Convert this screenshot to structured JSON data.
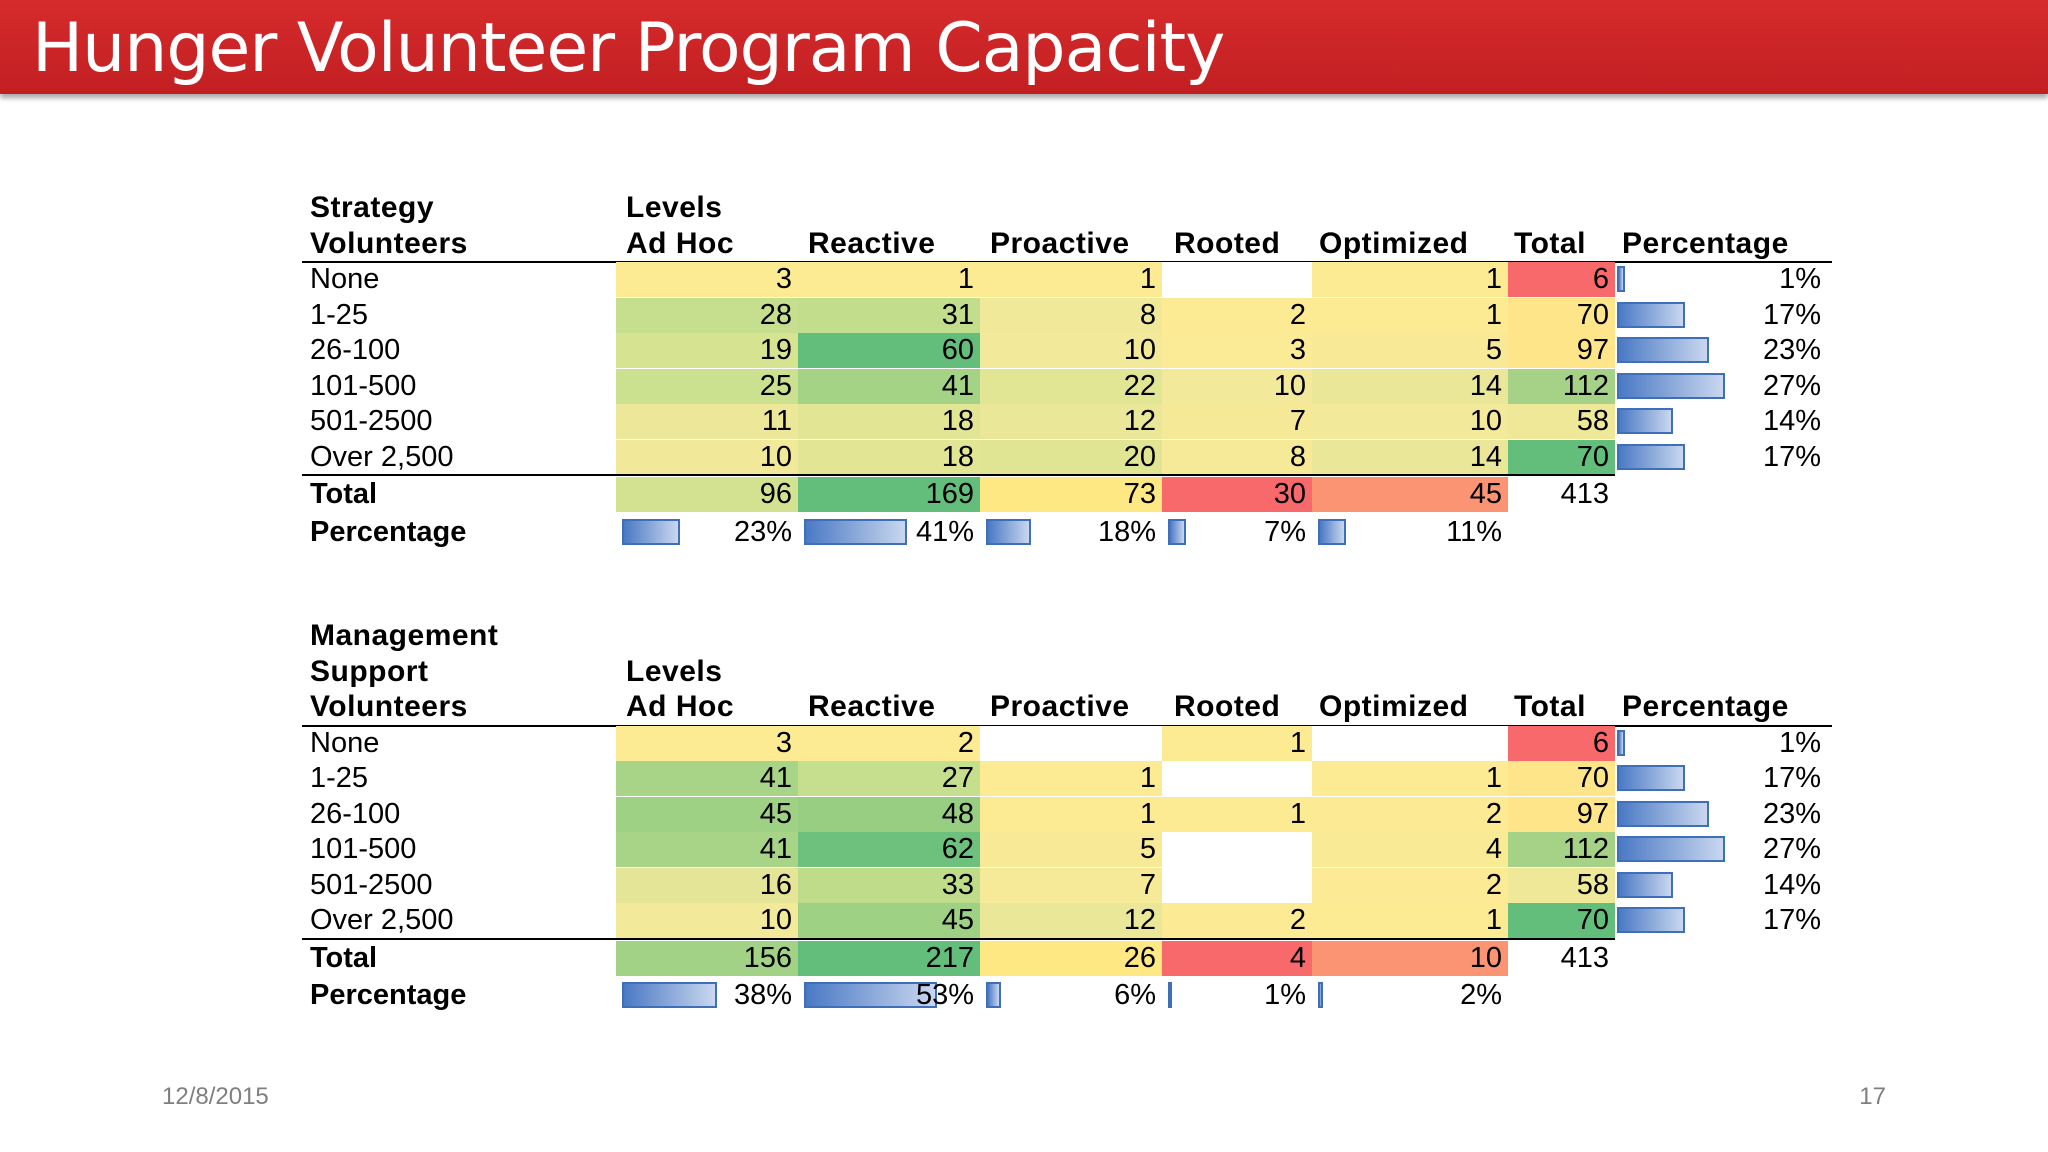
{
  "title": "Hunger Volunteer Program Capacity",
  "footer": {
    "date": "12/8/2015",
    "page": "17"
  },
  "tables": [
    {
      "id": "strategy",
      "header_lines": [
        "Strategy",
        "Volunteers"
      ],
      "levels_label": "Levels",
      "columns": [
        "Ad Hoc",
        "Reactive",
        "Proactive",
        "Rooted",
        "Optimized",
        "Total",
        "Percentage"
      ],
      "rows": [
        {
          "label": "None",
          "values": [
            "3",
            "1",
            "1",
            "",
            "1"
          ],
          "total": "6",
          "pct": "1%",
          "pct_value": 0.01
        },
        {
          "label": "1-25",
          "values": [
            "28",
            "31",
            "8",
            "2",
            "1"
          ],
          "total": "70",
          "pct": "17%",
          "pct_value": 0.17
        },
        {
          "label": "26-100",
          "values": [
            "19",
            "60",
            "10",
            "3",
            "5"
          ],
          "total": "97",
          "pct": "23%",
          "pct_value": 0.23
        },
        {
          "label": "101-500",
          "values": [
            "25",
            "41",
            "22",
            "10",
            "14"
          ],
          "total": "112",
          "pct": "27%",
          "pct_value": 0.27
        },
        {
          "label": "501-2500",
          "values": [
            "11",
            "18",
            "12",
            "7",
            "10"
          ],
          "total": "58",
          "pct": "14%",
          "pct_value": 0.14
        },
        {
          "label": "Over 2,500",
          "values": [
            "10",
            "18",
            "20",
            "8",
            "14"
          ],
          "total": "70",
          "pct": "17%",
          "pct_value": 0.17
        }
      ],
      "total_row": {
        "label": "Total",
        "values": [
          "96",
          "169",
          "73",
          "30",
          "45"
        ],
        "total": "413"
      },
      "pct_row": {
        "label": "Percentage",
        "values": [
          "23%",
          "41%",
          "18%",
          "7%",
          "11%"
        ],
        "fractions": [
          0.23,
          0.41,
          0.18,
          0.07,
          0.11
        ]
      },
      "cell_colors": [
        [
          "#fdeb93",
          "#fdeb93",
          "#fdeb93",
          "#ffffff",
          "#fdeb93"
        ],
        [
          "#c5df8e",
          "#c2de8c",
          "#f1e99a",
          "#fdeb93",
          "#fdeb93"
        ],
        [
          "#d6e491",
          "#63be7b",
          "#f2e99a",
          "#fbea96",
          "#f8e997"
        ],
        [
          "#cbe18f",
          "#a4d386",
          "#e1e694",
          "#f2e99a",
          "#ebe798"
        ],
        [
          "#ece799",
          "#e1e594",
          "#eae799",
          "#f5e998",
          "#f2e99a"
        ],
        [
          "#f1e89a",
          "#e1e594",
          "#e0e594",
          "#f6e998",
          "#ebe798"
        ]
      ],
      "total_colors": [
        "#f8696b",
        "#fee58a",
        "#fee58a",
        "#a5d287",
        "#f0e899",
        "#63be7b",
        "#fcbd7b",
        "#fee58a"
      ],
      "summary_colors": [
        "#d2e290",
        "#63be7b",
        "#fee884",
        "#f8696b",
        "#fa9473"
      ]
    },
    {
      "id": "management",
      "header_lines": [
        "Management",
        "Support",
        "Volunteers"
      ],
      "levels_label": "Levels",
      "columns": [
        "Ad Hoc",
        "Reactive",
        "Proactive",
        "Rooted",
        "Optimized",
        "Total",
        "Percentage"
      ],
      "rows": [
        {
          "label": "None",
          "values": [
            "3",
            "2",
            "",
            "1",
            ""
          ],
          "total": "6",
          "pct": "1%",
          "pct_value": 0.01
        },
        {
          "label": "1-25",
          "values": [
            "41",
            "27",
            "1",
            "",
            "1"
          ],
          "total": "70",
          "pct": "17%",
          "pct_value": 0.17
        },
        {
          "label": "26-100",
          "values": [
            "45",
            "48",
            "1",
            "1",
            "2"
          ],
          "total": "97",
          "pct": "23%",
          "pct_value": 0.23
        },
        {
          "label": "101-500",
          "values": [
            "41",
            "62",
            "5",
            "",
            "4"
          ],
          "total": "112",
          "pct": "27%",
          "pct_value": 0.27
        },
        {
          "label": "501-2500",
          "values": [
            "16",
            "33",
            "7",
            "",
            "2"
          ],
          "total": "58",
          "pct": "14%",
          "pct_value": 0.14
        },
        {
          "label": "Over 2,500",
          "values": [
            "10",
            "45",
            "12",
            "2",
            "1"
          ],
          "total": "70",
          "pct": "17%",
          "pct_value": 0.17
        }
      ],
      "total_row": {
        "label": "Total",
        "values": [
          "156",
          "217",
          "26",
          "4",
          "10"
        ],
        "total": "413"
      },
      "pct_row": {
        "label": "Percentage",
        "values": [
          "38%",
          "53%",
          "6%",
          "1%",
          "2%"
        ],
        "fractions": [
          0.38,
          0.53,
          0.06,
          0.01,
          0.02
        ]
      },
      "cell_colors": [
        [
          "#fdeb93",
          "#fdeb93",
          "#ffffff",
          "#fdeb93",
          "#ffffff"
        ],
        [
          "#a8d488",
          "#c6df8e",
          "#fdeb93",
          "#ffffff",
          "#fdeb93"
        ],
        [
          "#9ed184",
          "#97ce82",
          "#fdeb93",
          "#fdeb93",
          "#fcea95"
        ],
        [
          "#a8d488",
          "#6ec17d",
          "#f8e996",
          "#ffffff",
          "#f9ea96"
        ],
        [
          "#e4e596",
          "#bfdc8b",
          "#f6e998",
          "#ffffff",
          "#fcea95"
        ],
        [
          "#f2e99a",
          "#9ed184",
          "#eae799",
          "#fcea95",
          "#fdeb93"
        ]
      ],
      "total_colors": [
        "#f8696b",
        "#fee58a",
        "#fee58a",
        "#a5d287",
        "#f0e899",
        "#63be7b",
        "#fcbd7b",
        "#fee58a"
      ],
      "summary_colors": [
        "#a2d285",
        "#63be7b",
        "#fee884",
        "#f8696b",
        "#fa9473"
      ]
    }
  ]
}
